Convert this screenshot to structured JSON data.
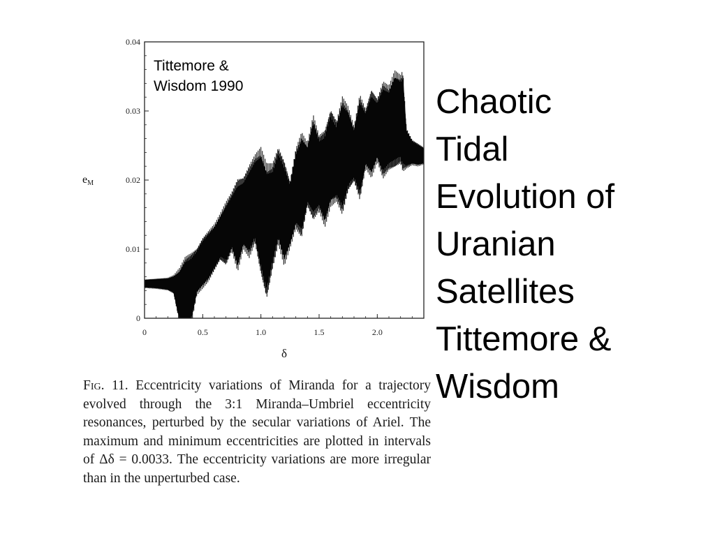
{
  "annotation": "Tittemore &\nWisdom 1990",
  "slide_title": "Chaotic\nTidal\nEvolution of\nUranian\nSatellites\nTittemore &\nWisdom",
  "caption": {
    "fig_label": "Fig. 11.",
    "text": "Eccentricity variations of Miranda for a trajectory evolved through the 3:1 Miranda–Umbriel eccentricity resonances, perturbed by the secular variations of Ariel. The maximum and minimum eccentricities are plotted in intervals of Δδ = 0.0033. The eccentricity variations are more irregular than in the unperturbed case."
  },
  "chart_data": {
    "type": "area",
    "xlabel": "δ",
    "ylabel": "e",
    "ylabel_sub": "M",
    "xlim": [
      0,
      2.4
    ],
    "ylim": [
      0,
      0.04
    ],
    "x_ticks": [
      0,
      0.5,
      1.0,
      1.5,
      2.0
    ],
    "x_tick_labels": [
      "0",
      "0.5",
      "1.0",
      "1.5",
      "2.0"
    ],
    "y_ticks": [
      0,
      0.01,
      0.02,
      0.03,
      0.04
    ],
    "y_tick_labels": [
      "0",
      "0.01",
      "0.02",
      "0.03",
      "0.04"
    ],
    "series": [
      {
        "x": [
          0,
          0.1,
          0.2,
          0.25,
          0.3,
          0.35,
          0.4,
          0.45,
          0.5,
          0.55,
          0.6,
          0.65,
          0.7,
          0.75,
          0.8,
          0.85,
          0.9,
          0.95,
          1.0,
          1.05,
          1.1,
          1.15,
          1.2,
          1.25,
          1.3,
          1.35,
          1.4,
          1.45,
          1.5,
          1.55,
          1.6,
          1.65,
          1.7,
          1.75,
          1.8,
          1.85,
          1.9,
          1.95,
          2.0,
          2.05,
          2.1,
          2.15,
          2.2,
          2.22,
          2.25,
          2.3,
          2.35,
          2.4
        ],
        "upper": [
          0.0055,
          0.0056,
          0.0057,
          0.006,
          0.0065,
          0.008,
          0.0085,
          0.0095,
          0.011,
          0.012,
          0.013,
          0.0145,
          0.016,
          0.0175,
          0.019,
          0.0195,
          0.021,
          0.0225,
          0.023,
          0.0205,
          0.021,
          0.0235,
          0.0215,
          0.019,
          0.0235,
          0.0255,
          0.0245,
          0.028,
          0.0255,
          0.026,
          0.029,
          0.0275,
          0.0305,
          0.0295,
          0.027,
          0.031,
          0.0295,
          0.032,
          0.031,
          0.033,
          0.0325,
          0.0345,
          0.034,
          0.0345,
          0.027,
          0.0255,
          0.025,
          0.0245
        ],
        "lower": [
          0.0045,
          0.0044,
          0.0042,
          0.0038,
          0.0,
          0.0,
          0.0,
          0.004,
          0.005,
          0.006,
          0.0075,
          0.009,
          0.0085,
          0.0105,
          0.008,
          0.011,
          0.01,
          0.012,
          0.008,
          0.0045,
          0.0085,
          0.012,
          0.009,
          0.011,
          0.014,
          0.013,
          0.017,
          0.0155,
          0.0165,
          0.0145,
          0.0175,
          0.018,
          0.0165,
          0.0195,
          0.0205,
          0.0185,
          0.0225,
          0.0215,
          0.0235,
          0.0215,
          0.0225,
          0.023,
          0.0235,
          0.0225,
          0.0222,
          0.0225,
          0.0223,
          0.0225
        ]
      }
    ]
  }
}
